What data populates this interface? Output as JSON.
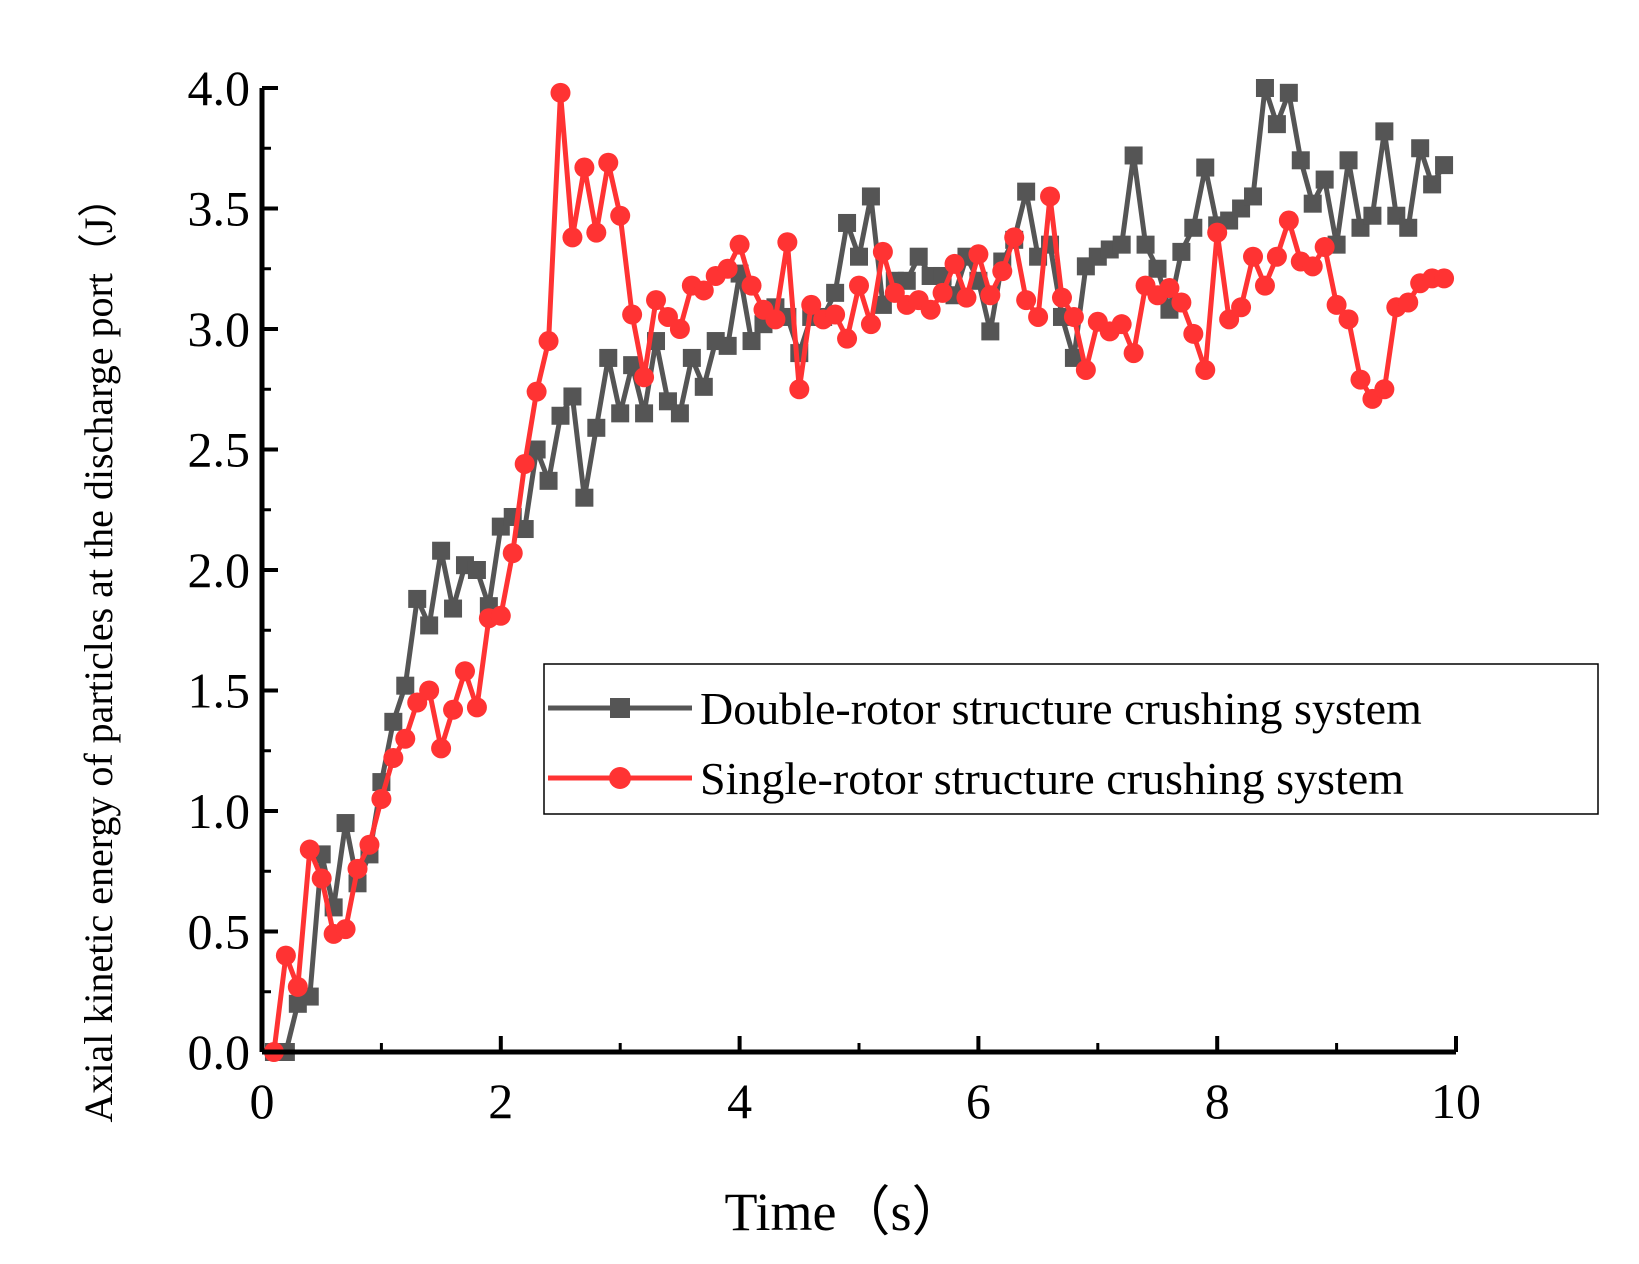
{
  "chart_data": {
    "type": "line",
    "title": "",
    "xlabel": "Time（s）",
    "ylabel": "Axial kinetic energy of particles at the discharge port（J）",
    "xlim": [
      0,
      10
    ],
    "ylim": [
      0,
      4.0
    ],
    "x_ticks": [
      0,
      2,
      4,
      6,
      8,
      10
    ],
    "x_tick_labels": [
      "0",
      "2",
      "4",
      "6",
      "8",
      "10"
    ],
    "y_ticks": [
      0,
      0.5,
      1.0,
      1.5,
      2.0,
      2.5,
      3.0,
      3.5,
      4.0
    ],
    "y_tick_labels": [
      "0.0",
      "0.5",
      "1.0",
      "1.5",
      "2.0",
      "2.5",
      "3.0",
      "3.5",
      "4.0"
    ],
    "grid": false,
    "legend_position": "center-right",
    "series": [
      {
        "name": "Double-rotor structure crushing system",
        "color": "#555555",
        "marker": "square",
        "x": [
          0.1,
          0.2,
          0.3,
          0.4,
          0.5,
          0.6,
          0.7,
          0.8,
          0.9,
          1.0,
          1.1,
          1.2,
          1.3,
          1.4,
          1.5,
          1.6,
          1.7,
          1.8,
          1.9,
          2.0,
          2.1,
          2.2,
          2.3,
          2.4,
          2.5,
          2.6,
          2.7,
          2.8,
          2.9,
          3.0,
          3.1,
          3.2,
          3.3,
          3.4,
          3.5,
          3.6,
          3.7,
          3.8,
          3.9,
          4.0,
          4.1,
          4.2,
          4.3,
          4.4,
          4.5,
          4.6,
          4.7,
          4.8,
          4.9,
          5.0,
          5.1,
          5.2,
          5.3,
          5.4,
          5.5,
          5.6,
          5.7,
          5.8,
          5.9,
          6.0,
          6.1,
          6.2,
          6.3,
          6.4,
          6.5,
          6.6,
          6.7,
          6.8,
          6.9,
          7.0,
          7.1,
          7.2,
          7.3,
          7.4,
          7.5,
          7.6,
          7.7,
          7.8,
          7.9,
          8.0,
          8.1,
          8.2,
          8.3,
          8.4,
          8.5,
          8.6,
          8.7,
          8.8,
          8.9,
          9.0,
          9.1,
          9.2,
          9.3,
          9.4,
          9.5,
          9.6,
          9.7,
          9.8,
          9.9
        ],
        "values": [
          0.0,
          0.0,
          0.2,
          0.23,
          0.82,
          0.6,
          0.95,
          0.7,
          0.82,
          1.12,
          1.37,
          1.52,
          1.88,
          1.77,
          2.08,
          1.84,
          2.02,
          2.0,
          1.85,
          2.18,
          2.22,
          2.17,
          2.5,
          2.37,
          2.64,
          2.72,
          2.3,
          2.59,
          2.88,
          2.65,
          2.85,
          2.65,
          2.95,
          2.7,
          2.65,
          2.88,
          2.76,
          2.95,
          2.93,
          3.23,
          2.95,
          3.02,
          3.09,
          3.05,
          2.9,
          3.05,
          3.05,
          3.15,
          3.44,
          3.3,
          3.55,
          3.1,
          3.2,
          3.2,
          3.3,
          3.22,
          3.22,
          3.14,
          3.3,
          3.2,
          2.99,
          3.28,
          3.37,
          3.57,
          3.3,
          3.35,
          3.05,
          2.88,
          3.26,
          3.3,
          3.33,
          3.35,
          3.72,
          3.35,
          3.25,
          3.08,
          3.32,
          3.42,
          3.67,
          3.43,
          3.45,
          3.5,
          3.55,
          4.0,
          3.85,
          3.98,
          3.7,
          3.52,
          3.62,
          3.35,
          3.7,
          3.42,
          3.47,
          3.82,
          3.47,
          3.42,
          3.75,
          3.6,
          3.68
        ]
      },
      {
        "name": "Single-rotor structure crushing system",
        "color": "#ff3333",
        "marker": "circle",
        "x": [
          0.1,
          0.2,
          0.3,
          0.4,
          0.5,
          0.6,
          0.7,
          0.8,
          0.9,
          1.0,
          1.1,
          1.2,
          1.3,
          1.4,
          1.5,
          1.6,
          1.7,
          1.8,
          1.9,
          2.0,
          2.1,
          2.2,
          2.3,
          2.4,
          2.5,
          2.6,
          2.7,
          2.8,
          2.9,
          3.0,
          3.1,
          3.2,
          3.3,
          3.4,
          3.5,
          3.6,
          3.7,
          3.8,
          3.9,
          4.0,
          4.1,
          4.2,
          4.3,
          4.4,
          4.5,
          4.6,
          4.7,
          4.8,
          4.9,
          5.0,
          5.1,
          5.2,
          5.3,
          5.4,
          5.5,
          5.6,
          5.7,
          5.8,
          5.9,
          6.0,
          6.1,
          6.2,
          6.3,
          6.4,
          6.5,
          6.6,
          6.7,
          6.8,
          6.9,
          7.0,
          7.1,
          7.2,
          7.3,
          7.4,
          7.5,
          7.6,
          7.7,
          7.8,
          7.9,
          8.0,
          8.1,
          8.2,
          8.3,
          8.4,
          8.5,
          8.6,
          8.7,
          8.8,
          8.9,
          9.0,
          9.1,
          9.2,
          9.3,
          9.4,
          9.5,
          9.6,
          9.7,
          9.8,
          9.9
        ],
        "values": [
          0.0,
          0.4,
          0.27,
          0.84,
          0.72,
          0.49,
          0.51,
          0.76,
          0.86,
          1.05,
          1.22,
          1.3,
          1.45,
          1.5,
          1.26,
          1.42,
          1.58,
          1.43,
          1.8,
          1.81,
          2.07,
          2.44,
          2.74,
          2.95,
          3.98,
          3.38,
          3.67,
          3.4,
          3.69,
          3.47,
          3.06,
          2.8,
          3.12,
          3.05,
          3.0,
          3.18,
          3.16,
          3.22,
          3.25,
          3.35,
          3.18,
          3.08,
          3.04,
          3.36,
          2.75,
          3.1,
          3.04,
          3.06,
          2.96,
          3.18,
          3.02,
          3.32,
          3.15,
          3.1,
          3.12,
          3.08,
          3.15,
          3.27,
          3.13,
          3.31,
          3.14,
          3.24,
          3.38,
          3.12,
          3.05,
          3.55,
          3.13,
          3.05,
          2.83,
          3.03,
          2.99,
          3.02,
          2.9,
          3.18,
          3.14,
          3.17,
          3.11,
          2.98,
          2.83,
          3.4,
          3.04,
          3.09,
          3.3,
          3.18,
          3.3,
          3.45,
          3.28,
          3.26,
          3.34,
          3.1,
          3.04,
          2.79,
          2.71,
          2.75,
          3.09,
          3.11,
          3.19,
          3.21,
          3.21
        ]
      }
    ]
  }
}
